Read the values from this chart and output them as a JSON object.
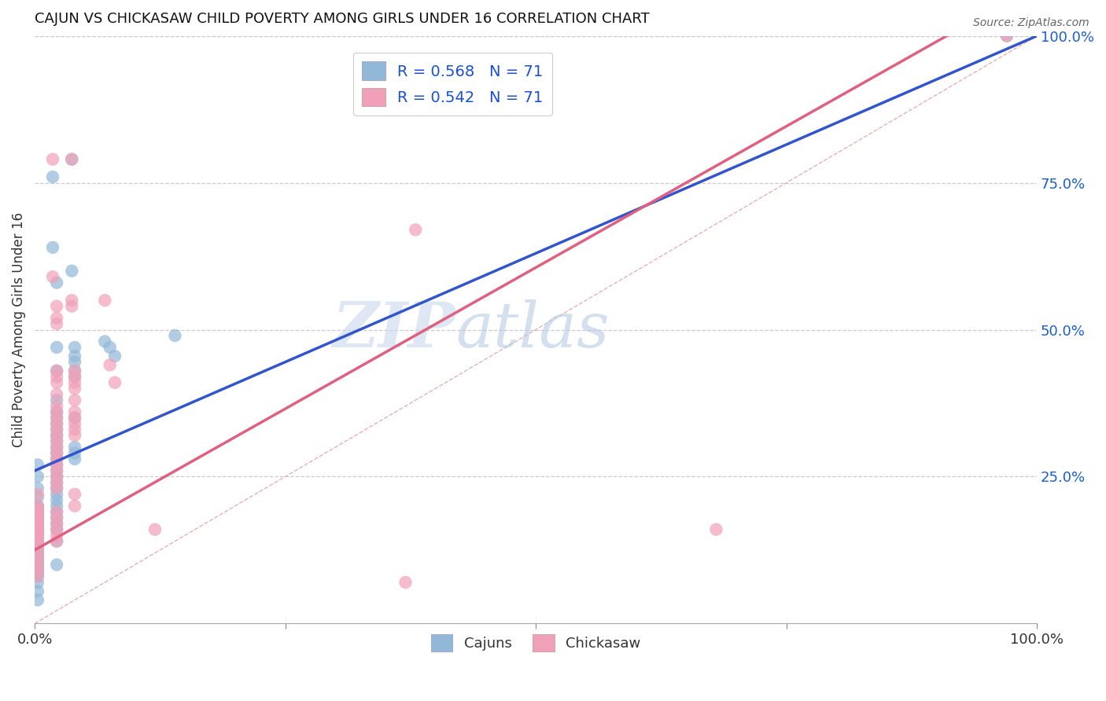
{
  "title": "CAJUN VS CHICKASAW CHILD POVERTY AMONG GIRLS UNDER 16 CORRELATION CHART",
  "source": "Source: ZipAtlas.com",
  "ylabel": "Child Poverty Among Girls Under 16",
  "xlim": [
    0,
    1
  ],
  "ylim": [
    0,
    1
  ],
  "cajun_color": "#92b8d8",
  "chickasaw_color": "#f0a0b8",
  "cajun_line_color": "#3355cc",
  "chickasaw_line_color": "#e06080",
  "diagonal_color": "#ddaaaa",
  "R_cajun": 0.568,
  "R_chickasaw": 0.542,
  "N": 71,
  "legend_R_color": "#1a4fd8",
  "watermark_zip": "ZIP",
  "watermark_atlas": "atlas",
  "cajun_line": [
    0.0,
    0.26,
    1.0,
    1.0
  ],
  "chickasaw_line": [
    0.13,
    0.25,
    0.65,
    0.75
  ],
  "cajun_scatter": [
    [
      0.003,
      0.27
    ],
    [
      0.003,
      0.25
    ],
    [
      0.003,
      0.23
    ],
    [
      0.003,
      0.215
    ],
    [
      0.003,
      0.2
    ],
    [
      0.003,
      0.195
    ],
    [
      0.003,
      0.19
    ],
    [
      0.003,
      0.185
    ],
    [
      0.003,
      0.18
    ],
    [
      0.003,
      0.175
    ],
    [
      0.003,
      0.17
    ],
    [
      0.003,
      0.165
    ],
    [
      0.003,
      0.16
    ],
    [
      0.003,
      0.155
    ],
    [
      0.003,
      0.15
    ],
    [
      0.003,
      0.145
    ],
    [
      0.003,
      0.14
    ],
    [
      0.003,
      0.135
    ],
    [
      0.003,
      0.13
    ],
    [
      0.003,
      0.125
    ],
    [
      0.003,
      0.12
    ],
    [
      0.003,
      0.115
    ],
    [
      0.003,
      0.11
    ],
    [
      0.003,
      0.105
    ],
    [
      0.003,
      0.1
    ],
    [
      0.003,
      0.095
    ],
    [
      0.003,
      0.09
    ],
    [
      0.003,
      0.085
    ],
    [
      0.003,
      0.08
    ],
    [
      0.003,
      0.07
    ],
    [
      0.003,
      0.055
    ],
    [
      0.003,
      0.04
    ],
    [
      0.018,
      0.76
    ],
    [
      0.018,
      0.64
    ],
    [
      0.022,
      0.58
    ],
    [
      0.022,
      0.47
    ],
    [
      0.022,
      0.43
    ],
    [
      0.022,
      0.38
    ],
    [
      0.022,
      0.36
    ],
    [
      0.022,
      0.35
    ],
    [
      0.022,
      0.34
    ],
    [
      0.022,
      0.33
    ],
    [
      0.022,
      0.32
    ],
    [
      0.022,
      0.31
    ],
    [
      0.022,
      0.3
    ],
    [
      0.022,
      0.29
    ],
    [
      0.022,
      0.28
    ],
    [
      0.022,
      0.27
    ],
    [
      0.022,
      0.26
    ],
    [
      0.022,
      0.25
    ],
    [
      0.022,
      0.24
    ],
    [
      0.022,
      0.23
    ],
    [
      0.022,
      0.22
    ],
    [
      0.022,
      0.21
    ],
    [
      0.022,
      0.2
    ],
    [
      0.022,
      0.19
    ],
    [
      0.022,
      0.18
    ],
    [
      0.022,
      0.17
    ],
    [
      0.022,
      0.16
    ],
    [
      0.022,
      0.14
    ],
    [
      0.022,
      0.1
    ],
    [
      0.037,
      0.79
    ],
    [
      0.037,
      0.6
    ],
    [
      0.04,
      0.47
    ],
    [
      0.04,
      0.455
    ],
    [
      0.04,
      0.445
    ],
    [
      0.04,
      0.43
    ],
    [
      0.04,
      0.42
    ],
    [
      0.04,
      0.35
    ],
    [
      0.04,
      0.3
    ],
    [
      0.04,
      0.29
    ],
    [
      0.04,
      0.28
    ],
    [
      0.07,
      0.48
    ],
    [
      0.075,
      0.47
    ],
    [
      0.08,
      0.455
    ],
    [
      0.14,
      0.49
    ],
    [
      0.97,
      1.0
    ]
  ],
  "chickasaw_scatter": [
    [
      0.003,
      0.22
    ],
    [
      0.003,
      0.2
    ],
    [
      0.003,
      0.195
    ],
    [
      0.003,
      0.19
    ],
    [
      0.003,
      0.185
    ],
    [
      0.003,
      0.18
    ],
    [
      0.003,
      0.175
    ],
    [
      0.003,
      0.17
    ],
    [
      0.003,
      0.165
    ],
    [
      0.003,
      0.16
    ],
    [
      0.003,
      0.155
    ],
    [
      0.003,
      0.15
    ],
    [
      0.003,
      0.145
    ],
    [
      0.003,
      0.14
    ],
    [
      0.003,
      0.13
    ],
    [
      0.003,
      0.12
    ],
    [
      0.003,
      0.11
    ],
    [
      0.003,
      0.1
    ],
    [
      0.003,
      0.09
    ],
    [
      0.003,
      0.08
    ],
    [
      0.018,
      0.79
    ],
    [
      0.018,
      0.59
    ],
    [
      0.022,
      0.54
    ],
    [
      0.022,
      0.52
    ],
    [
      0.022,
      0.51
    ],
    [
      0.022,
      0.43
    ],
    [
      0.022,
      0.42
    ],
    [
      0.022,
      0.41
    ],
    [
      0.022,
      0.39
    ],
    [
      0.022,
      0.37
    ],
    [
      0.022,
      0.36
    ],
    [
      0.022,
      0.35
    ],
    [
      0.022,
      0.34
    ],
    [
      0.022,
      0.33
    ],
    [
      0.022,
      0.32
    ],
    [
      0.022,
      0.31
    ],
    [
      0.022,
      0.3
    ],
    [
      0.022,
      0.29
    ],
    [
      0.022,
      0.28
    ],
    [
      0.022,
      0.27
    ],
    [
      0.022,
      0.26
    ],
    [
      0.022,
      0.25
    ],
    [
      0.022,
      0.24
    ],
    [
      0.022,
      0.23
    ],
    [
      0.022,
      0.19
    ],
    [
      0.022,
      0.18
    ],
    [
      0.022,
      0.17
    ],
    [
      0.022,
      0.16
    ],
    [
      0.022,
      0.15
    ],
    [
      0.022,
      0.14
    ],
    [
      0.037,
      0.79
    ],
    [
      0.037,
      0.55
    ],
    [
      0.037,
      0.54
    ],
    [
      0.04,
      0.43
    ],
    [
      0.04,
      0.42
    ],
    [
      0.04,
      0.41
    ],
    [
      0.04,
      0.4
    ],
    [
      0.04,
      0.38
    ],
    [
      0.04,
      0.36
    ],
    [
      0.04,
      0.35
    ],
    [
      0.04,
      0.34
    ],
    [
      0.04,
      0.33
    ],
    [
      0.04,
      0.32
    ],
    [
      0.04,
      0.22
    ],
    [
      0.04,
      0.2
    ],
    [
      0.07,
      0.55
    ],
    [
      0.075,
      0.44
    ],
    [
      0.08,
      0.41
    ],
    [
      0.12,
      0.16
    ],
    [
      0.37,
      0.07
    ],
    [
      0.38,
      0.67
    ],
    [
      0.68,
      0.16
    ],
    [
      0.97,
      1.0
    ]
  ]
}
